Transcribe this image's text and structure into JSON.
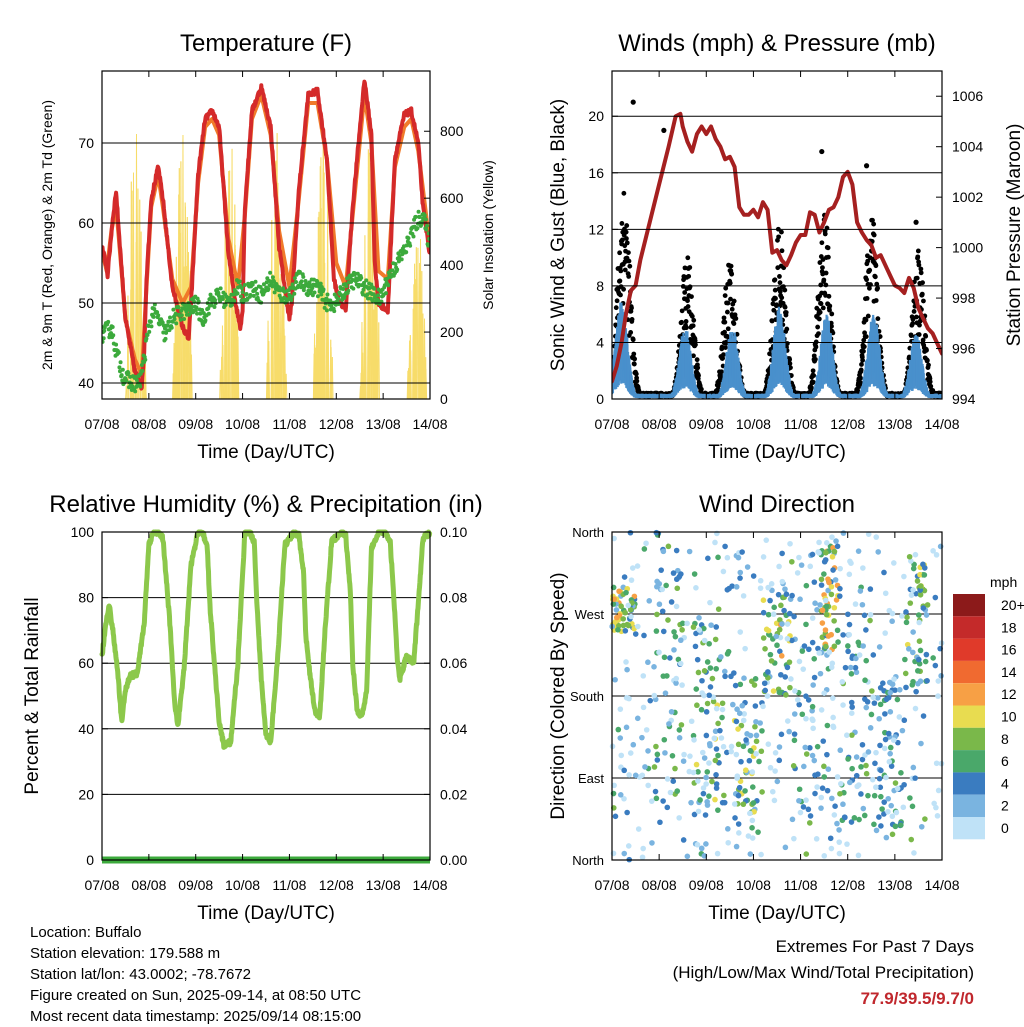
{
  "footer": {
    "location": "Location: Buffalo",
    "elevation": "Station elevation: 179.588 m",
    "latlon": "Station lat/lon: 43.0002; -78.7672",
    "created": "Figure created on Sun, 2025-09-14, at 08:50 UTC",
    "recent": "Most recent data timestamp: 2025/09/14 08:15:00"
  },
  "extremes": {
    "title": "Extremes For Past 7 Days",
    "subtitle": "(High/Low/Max Wind/Total Precipitation)",
    "value": "77.9/39.5/9.7/0"
  },
  "colors": {
    "temp_2m": "#d42a2a",
    "temp_9m": "#f07a2a",
    "dewpoint": "#3caa3c",
    "solar": "#f7dc6a",
    "wind": "#4a90cc",
    "gust": "#000000",
    "pressure": "#a52020",
    "rh": "#8cc84b",
    "precip": "#3caa3c"
  },
  "chart_data": [
    {
      "type": "line",
      "title": "Temperature (F)",
      "xlabel": "Time (Day/UTC)",
      "ylabel": "2m & 9m T (Red, Orange) & 2m Td (Green)",
      "y2label": "Solar Insolation (Yellow)",
      "x_ticks": [
        "07/08",
        "08/08",
        "09/08",
        "10/08",
        "11/08",
        "12/08",
        "13/08",
        "14/08"
      ],
      "xlim": [
        0,
        7
      ],
      "ylim": [
        38,
        79
      ],
      "y_ticks": [
        40,
        50,
        60,
        70
      ],
      "y2lim": [
        0,
        980
      ],
      "y2_ticks": [
        0,
        200,
        400,
        600,
        800
      ],
      "grid": true,
      "series": [
        {
          "name": "2m T",
          "axis": "left",
          "x": [
            0,
            0.08,
            0.12,
            0.22,
            0.3,
            0.36,
            0.5,
            0.7,
            0.85,
            0.9,
            0.95,
            1.05,
            1.2,
            1.3,
            1.5,
            1.72,
            1.85,
            1.92,
            2.05,
            2.2,
            2.35,
            2.5,
            2.7,
            2.85,
            2.95,
            3.0,
            3.05,
            3.2,
            3.4,
            3.6,
            3.78,
            3.9,
            4.0,
            4.05,
            4.2,
            4.4,
            4.6,
            4.8,
            4.95,
            5.05,
            5.2,
            5.35,
            5.6,
            5.75,
            5.82,
            5.9,
            6.1,
            6.25,
            6.45,
            6.6,
            6.75,
            6.85,
            7.0
          ],
          "y": [
            57,
            55,
            53.5,
            60,
            64,
            59,
            48,
            41.5,
            39.5,
            44,
            53,
            63,
            67,
            63,
            52,
            47,
            45.5,
            52,
            66,
            73,
            74,
            72,
            56,
            50,
            47,
            49,
            62,
            74,
            77,
            72,
            57,
            52,
            48,
            50,
            64,
            76,
            76.5,
            68,
            53,
            50.5,
            49,
            62,
            78,
            71,
            55,
            50,
            49,
            68,
            73.5,
            74,
            70,
            62,
            56
          ]
        },
        {
          "name": "9m T",
          "axis": "left",
          "x": [
            0,
            0.1,
            0.2,
            0.3,
            0.36,
            0.5,
            0.7,
            0.85,
            0.95,
            1.05,
            1.2,
            1.3,
            1.5,
            1.72,
            1.9,
            2.05,
            2.2,
            2.35,
            2.5,
            2.7,
            2.9,
            3.05,
            3.2,
            3.4,
            3.6,
            3.78,
            4.0,
            4.2,
            4.4,
            4.6,
            4.8,
            5.0,
            5.2,
            5.35,
            5.6,
            5.75,
            5.9,
            6.1,
            6.25,
            6.45,
            6.6,
            6.75,
            7.0
          ],
          "y": [
            56.5,
            54,
            59,
            62,
            58,
            48,
            43,
            41,
            52,
            62,
            66,
            62,
            53,
            50,
            52,
            65,
            72,
            73,
            71,
            58,
            52,
            61,
            73,
            76,
            71,
            59,
            52,
            63,
            75,
            75,
            68,
            55,
            52,
            61,
            76,
            70,
            54,
            53,
            67,
            72,
            73,
            69,
            57
          ]
        },
        {
          "name": "2m Td",
          "axis": "left",
          "x": [
            0,
            0.2,
            0.3,
            0.45,
            0.6,
            0.8,
            0.9,
            1.0,
            1.1,
            1.2,
            1.35,
            1.5,
            1.7,
            1.85,
            2.0,
            2.15,
            2.3,
            2.5,
            2.7,
            2.9,
            3.0,
            3.2,
            3.4,
            3.6,
            3.8,
            4.0,
            4.2,
            4.4,
            4.6,
            4.8,
            5.0,
            5.2,
            5.4,
            5.6,
            5.8,
            5.95,
            6.1,
            6.3,
            6.5,
            6.7,
            6.85,
            7.0
          ],
          "y": [
            46,
            47,
            44,
            41,
            40,
            40,
            43,
            47,
            49,
            48,
            46,
            48,
            49,
            49,
            50,
            48,
            50,
            51,
            50,
            52,
            51,
            52,
            51,
            53,
            51,
            51,
            53,
            52,
            52,
            50,
            50,
            52,
            53,
            52,
            51,
            50.5,
            53,
            55,
            57,
            60,
            61,
            57
          ]
        },
        {
          "name": "Solar Insolation",
          "axis": "right",
          "daily_peak": [
            980,
            970,
            840,
            860,
            860,
            880,
            580
          ],
          "peak_hour_utc": 17
        }
      ]
    },
    {
      "type": "scatter",
      "title": "Winds (mph) & Pressure (mb)",
      "xlabel": "Time (Day/UTC)",
      "ylabel": "Sonic Wind & Gust (Blue, Black)",
      "y2label": "Station Pressure (Maroon)",
      "x_ticks": [
        "07/08",
        "08/08",
        "09/08",
        "10/08",
        "11/08",
        "12/08",
        "13/08",
        "14/08"
      ],
      "xlim": [
        0,
        7
      ],
      "ylim": [
        0,
        23.2
      ],
      "y_ticks": [
        0,
        4,
        8,
        12,
        16,
        20
      ],
      "y2lim": [
        994,
        1007
      ],
      "y2_ticks": [
        994,
        996,
        998,
        1000,
        1002,
        1004,
        1006
      ],
      "grid": true,
      "series": [
        {
          "name": "Sonic Wind",
          "axis": "left",
          "daily_peaks": [
            [
              0.2,
              7.5
            ],
            [
              1.55,
              5.5
            ],
            [
              2.55,
              5.5
            ],
            [
              3.55,
              7.0
            ],
            [
              4.55,
              6.5
            ],
            [
              5.55,
              6.5
            ],
            [
              6.45,
              5.0
            ]
          ]
        },
        {
          "name": "Gust",
          "axis": "left",
          "daily_peaks": [
            [
              0.25,
              15
            ],
            [
              1.6,
              10
            ],
            [
              2.5,
              9.5
            ],
            [
              3.55,
              12
            ],
            [
              4.5,
              13
            ],
            [
              5.5,
              13
            ],
            [
              6.5,
              10
            ]
          ],
          "max_points": [
            [
              0.45,
              21
            ],
            [
              1.1,
              19
            ],
            [
              4.45,
              17.5
            ],
            [
              5.4,
              16.5
            ],
            [
              6.45,
              12.5
            ]
          ]
        },
        {
          "name": "Station Pressure",
          "axis": "right",
          "x": [
            0,
            0.1,
            0.2,
            0.3,
            0.4,
            0.5,
            0.6,
            0.8,
            1.0,
            1.2,
            1.35,
            1.45,
            1.5,
            1.6,
            1.7,
            1.8,
            1.9,
            2.0,
            2.1,
            2.2,
            2.3,
            2.4,
            2.5,
            2.6,
            2.7,
            2.8,
            2.9,
            3.0,
            3.1,
            3.2,
            3.3,
            3.4,
            3.5,
            3.6,
            3.7,
            3.8,
            3.9,
            4.0,
            4.1,
            4.2,
            4.3,
            4.4,
            4.5,
            4.6,
            4.7,
            4.8,
            4.9,
            5.0,
            5.1,
            5.2,
            5.3,
            5.4,
            5.5,
            5.6,
            5.7,
            5.8,
            5.9,
            6.0,
            6.1,
            6.2,
            6.3,
            6.4,
            6.5,
            6.6,
            6.7,
            6.8,
            6.9,
            7.0
          ],
          "y": [
            994.7,
            995.3,
            996.2,
            997.4,
            998.3,
            998.5,
            999.5,
            1001.0,
            1002.5,
            1004.0,
            1005.2,
            1005.3,
            1004.8,
            1004.2,
            1003.8,
            1004.5,
            1004.8,
            1004.5,
            1004.8,
            1004.3,
            1004.0,
            1003.5,
            1003.6,
            1003.2,
            1001.6,
            1001.3,
            1001.3,
            1001.5,
            1001.2,
            1001.8,
            1001.5,
            999.8,
            999.9,
            999.5,
            999.3,
            999.7,
            1000.2,
            1000.5,
            1000.5,
            1001.4,
            1001.3,
            1000.6,
            1001.0,
            1001.5,
            1001.6,
            1002.0,
            1002.8,
            1003.0,
            1002.5,
            1001.0,
            1000.6,
            1000.3,
            1000.1,
            999.6,
            999.7,
            999.3,
            998.9,
            998.5,
            998.4,
            998.2,
            998.8,
            998.4,
            997.6,
            997.2,
            996.8,
            996.6,
            996.2,
            995.8
          ]
        }
      ]
    },
    {
      "type": "line",
      "title": "Relative Humidity (%) & Precipitation (in)",
      "xlabel": "Time (Day/UTC)",
      "ylabel": "Percent & Total Rainfall",
      "x_ticks": [
        "07/08",
        "08/08",
        "09/08",
        "10/08",
        "11/08",
        "12/08",
        "13/08",
        "14/08"
      ],
      "xlim": [
        0,
        7
      ],
      "ylim": [
        0,
        100
      ],
      "y_ticks": [
        0,
        20,
        40,
        60,
        80,
        100
      ],
      "y2lim": [
        0,
        0.1
      ],
      "y2_ticks": [
        "0.00",
        "0.02",
        "0.04",
        "0.06",
        "0.08",
        "0.10"
      ],
      "grid": true,
      "series": [
        {
          "name": "Relative Humidity",
          "axis": "left",
          "x": [
            0,
            0.08,
            0.15,
            0.25,
            0.35,
            0.42,
            0.5,
            0.6,
            0.75,
            0.9,
            1.0,
            1.1,
            1.2,
            1.3,
            1.45,
            1.55,
            1.62,
            1.75,
            1.9,
            2.05,
            2.15,
            2.25,
            2.3,
            2.4,
            2.5,
            2.6,
            2.75,
            2.9,
            3.05,
            3.15,
            3.25,
            3.3,
            3.4,
            3.5,
            3.6,
            3.75,
            3.9,
            4.1,
            4.2,
            4.3,
            4.35,
            4.45,
            4.55,
            4.65,
            4.75,
            4.9,
            5.1,
            5.2,
            5.3,
            5.35,
            5.45,
            5.55,
            5.65,
            5.75,
            5.9,
            6.05,
            6.15,
            6.25,
            6.3,
            6.35,
            6.5,
            6.65,
            6.75,
            6.85,
            7.0
          ],
          "y": [
            62,
            72,
            78,
            68,
            55,
            42,
            52,
            56,
            57,
            72,
            96,
            100,
            100,
            98,
            72,
            48,
            41,
            58,
            90,
            100,
            100,
            95,
            78,
            60,
            42,
            35,
            36,
            60,
            100,
            100,
            97,
            80,
            55,
            38,
            36,
            62,
            96,
            100,
            99,
            88,
            68,
            55,
            45,
            44,
            68,
            97,
            100,
            99,
            82,
            60,
            45,
            44,
            52,
            95,
            100,
            100,
            97,
            75,
            62,
            55,
            62,
            60,
            78,
            98,
            100
          ]
        },
        {
          "name": "Total Precipitation",
          "axis": "right",
          "x": [
            0,
            7
          ],
          "y": [
            0,
            0
          ]
        }
      ]
    },
    {
      "type": "scatter",
      "title": "Wind Direction",
      "xlabel": "Time (Day/UTC)",
      "ylabel": "Direction (Colored By Speed)",
      "x_ticks": [
        "07/08",
        "08/08",
        "09/08",
        "10/08",
        "11/08",
        "12/08",
        "13/08",
        "14/08"
      ],
      "xlim": [
        0,
        7
      ],
      "ylim": [
        0,
        360
      ],
      "y_ticks": [
        "North",
        "East",
        "South",
        "West",
        "North"
      ],
      "grid": true,
      "colorbar": {
        "label": "mph",
        "levels": [
          "20+",
          "18",
          "16",
          "14",
          "12",
          "10",
          "8",
          "6",
          "4",
          "2",
          "0"
        ],
        "colors": [
          "#8c1a1a",
          "#c42a2a",
          "#e03a2a",
          "#f06a30",
          "#f7a045",
          "#e8dc50",
          "#7ab84a",
          "#4aa86a",
          "#3a7cc0",
          "#7ab4e0",
          "#bfe2f7"
        ]
      }
    }
  ]
}
